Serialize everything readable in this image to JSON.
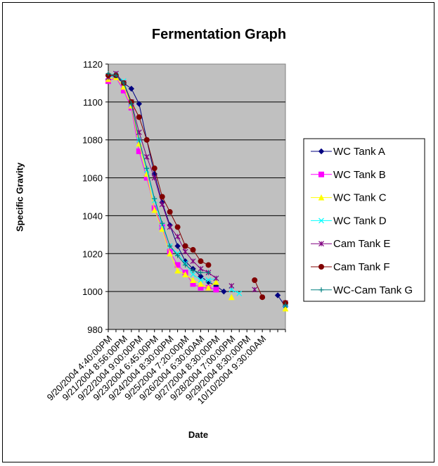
{
  "chart_data": {
    "type": "line",
    "title": "Fermentation Graph",
    "xlabel": "Date",
    "ylabel": "Specific Gravity",
    "ylim": [
      980,
      1120
    ],
    "yticks": [
      980,
      1000,
      1020,
      1040,
      1060,
      1080,
      1100,
      1120
    ],
    "grid": true,
    "legend": "right",
    "plot_background": "#c0c0c0",
    "n_categories": 24,
    "tick_labels": [
      {
        "index": 0,
        "label": "9/20/2004  4:40:00PM"
      },
      {
        "index": 2,
        "label": "9/21/2004  8:56:00PM"
      },
      {
        "index": 4,
        "label": "9/22/2004  9:00:00PM"
      },
      {
        "index": 6,
        "label": "9/23/2004  6:45:00PM"
      },
      {
        "index": 8,
        "label": "9/24/2004  8:30:00PM"
      },
      {
        "index": 10,
        "label": "9/25/2004  7:20:00pM"
      },
      {
        "index": 12,
        "label": "9/26/2004  6:30:00AM"
      },
      {
        "index": 14,
        "label": "9/27/2004  8:30:00PM"
      },
      {
        "index": 16,
        "label": "9/28/2004  7:00:00PM"
      },
      {
        "index": 18,
        "label": "9/29/2004  8:30:00PM"
      },
      {
        "index": 20,
        "label": "10/10/2004  9:30:00AM"
      }
    ],
    "series": [
      {
        "name": "WC Tank A",
        "color": "#000080",
        "marker": "diamond",
        "values": [
          1114,
          1113,
          1110,
          1107,
          1099,
          1080,
          1062,
          1047,
          1035,
          1024,
          1016,
          1012,
          1008,
          1005,
          1003,
          1000,
          null,
          null,
          null,
          null,
          null,
          null,
          998,
          992
        ]
      },
      {
        "name": "WC Tank B",
        "color": "#ff00ff",
        "marker": "square",
        "values": [
          1111,
          1113,
          1106,
          1097,
          1074,
          1060,
          1044,
          1034,
          1021,
          1014,
          1010,
          1004,
          1002,
          1002,
          1001,
          null,
          null,
          null,
          null,
          null,
          null,
          null,
          null,
          null
        ]
      },
      {
        "name": "WC Tank C",
        "color": "#ffff00",
        "marker": "triangle",
        "values": [
          1112,
          1113,
          1108,
          1098,
          1078,
          1062,
          1043,
          1033,
          1020,
          1011,
          1009,
          1006,
          1004,
          1002,
          1005,
          null,
          997,
          null,
          null,
          null,
          null,
          null,
          null,
          991
        ]
      },
      {
        "name": "WC Tank D",
        "color": "#00ffff",
        "marker": "x",
        "values": [
          1113,
          1114,
          1111,
          1099,
          1080,
          1064,
          1048,
          1035,
          1024,
          1020,
          1015,
          1009,
          1006,
          1006,
          1007,
          null,
          1001,
          999,
          null,
          null,
          null,
          null,
          null,
          993
        ]
      },
      {
        "name": "Cam Tank E",
        "color": "#800080",
        "marker": "star",
        "values": [
          1113,
          1115,
          1110,
          1100,
          1084,
          1071,
          1060,
          1046,
          1034,
          1029,
          1021,
          1016,
          1012,
          1010,
          1007,
          null,
          1003,
          null,
          null,
          1001,
          null,
          null,
          null,
          994
        ]
      },
      {
        "name": "Cam Tank F",
        "color": "#800000",
        "marker": "circle",
        "values": [
          1114,
          1114,
          1110,
          1100,
          1092,
          1080,
          1065,
          1050,
          1042,
          1034,
          1024,
          1022,
          1016,
          1014,
          null,
          null,
          null,
          null,
          null,
          1006,
          997,
          null,
          null,
          994
        ]
      },
      {
        "name": "WC-Cam Tank G",
        "color": "#008080",
        "marker": "plus",
        "values": [
          1115,
          1114,
          1110,
          1099,
          1080,
          1065,
          1049,
          1036,
          1024,
          1019,
          1014,
          1011,
          1010,
          1010,
          null,
          null,
          null,
          null,
          null,
          null,
          null,
          null,
          null,
          993
        ]
      }
    ]
  }
}
